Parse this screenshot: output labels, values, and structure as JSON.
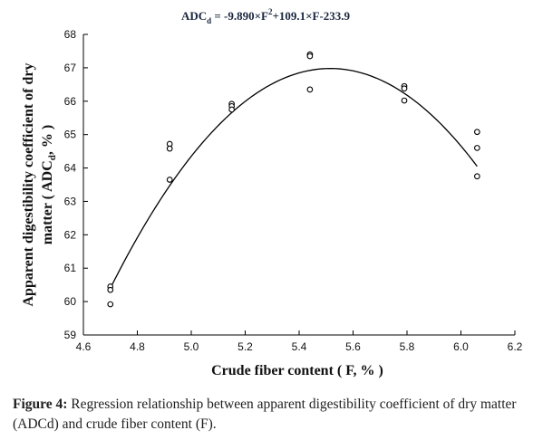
{
  "chart_data": {
    "type": "scatter",
    "title": "ADC",
    "title_sub": "d",
    "title_rest": " = -9.890×F",
    "title_sup": "2",
    "title_tail": "+109.1×F-233.9",
    "xlabel": "Crude fiber content ( F, % )",
    "ylabel_line1": "Apparent digestibility coefficient of dry",
    "ylabel_line2_a": "matter ( ADC",
    "ylabel_line2_sub": "d",
    "ylabel_line2_b": ", % )",
    "xlim": [
      4.6,
      6.2
    ],
    "ylim": [
      59,
      68
    ],
    "xticks": [
      "4.6",
      "4.8",
      "5.0",
      "5.2",
      "5.4",
      "5.6",
      "5.8",
      "6.0",
      "6.2"
    ],
    "yticks": [
      "59",
      "60",
      "61",
      "62",
      "63",
      "64",
      "65",
      "66",
      "67",
      "68"
    ],
    "grid": false,
    "points": [
      {
        "x": 4.7,
        "y": 60.45
      },
      {
        "x": 4.7,
        "y": 60.35
      },
      {
        "x": 4.7,
        "y": 59.92
      },
      {
        "x": 4.92,
        "y": 64.72
      },
      {
        "x": 4.92,
        "y": 64.58
      },
      {
        "x": 4.92,
        "y": 63.65
      },
      {
        "x": 5.15,
        "y": 65.92
      },
      {
        "x": 5.15,
        "y": 65.85
      },
      {
        "x": 5.15,
        "y": 65.75
      },
      {
        "x": 5.44,
        "y": 67.4
      },
      {
        "x": 5.44,
        "y": 67.35
      },
      {
        "x": 5.44,
        "y": 66.35
      },
      {
        "x": 5.79,
        "y": 66.45
      },
      {
        "x": 5.79,
        "y": 66.38
      },
      {
        "x": 5.79,
        "y": 66.02
      },
      {
        "x": 6.06,
        "y": 65.08
      },
      {
        "x": 6.06,
        "y": 64.6
      },
      {
        "x": 6.06,
        "y": 63.75
      }
    ],
    "fit": {
      "type": "quadratic",
      "a": -9.89,
      "b": 109.1,
      "c": -233.9,
      "x_range": [
        4.7,
        6.06
      ]
    }
  },
  "caption": {
    "label": "Figure 4:",
    "text": " Regression relationship between apparent digestibility coefficient of dry matter (ADCd) and crude fiber content (F)."
  }
}
